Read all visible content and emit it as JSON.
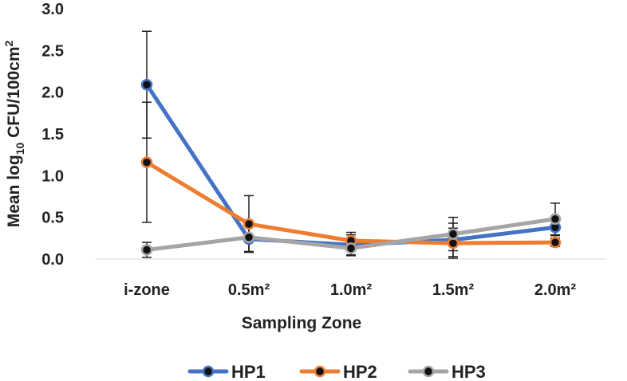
{
  "chart_data": {
    "type": "line",
    "title": "",
    "xlabel": "Sampling Zone",
    "ylabel": {
      "prefix": "Mean log",
      "subscript": "10",
      "suffix": " CFU/100cm",
      "superscript": "2"
    },
    "categories": [
      "i-zone",
      "0.5m²",
      "1.0m²",
      "1.5m²",
      "2.0m²"
    ],
    "ylim": [
      0,
      3.0
    ],
    "yticks": [
      "0.0",
      "0.5",
      "1.0",
      "1.5",
      "2.0",
      "2.5",
      "3.0"
    ],
    "grid": false,
    "legend_position": "bottom",
    "series": [
      {
        "name": "HP1",
        "color": "#4472C4",
        "values": [
          2.09,
          0.24,
          0.17,
          0.23,
          0.38
        ],
        "error": [
          0.64,
          0.15,
          0.12,
          0.2,
          0.1
        ]
      },
      {
        "name": "HP2",
        "color": "#ED7D31",
        "values": [
          1.16,
          0.42,
          0.22,
          0.19,
          0.2
        ],
        "error": [
          0.72,
          0.34,
          0.1,
          0.18,
          0.05
        ]
      },
      {
        "name": "HP3",
        "color": "#A5A5A5",
        "values": [
          0.11,
          0.26,
          0.13,
          0.3,
          0.48
        ],
        "error": [
          0.09,
          0.17,
          0.09,
          0.2,
          0.19
        ]
      }
    ]
  }
}
